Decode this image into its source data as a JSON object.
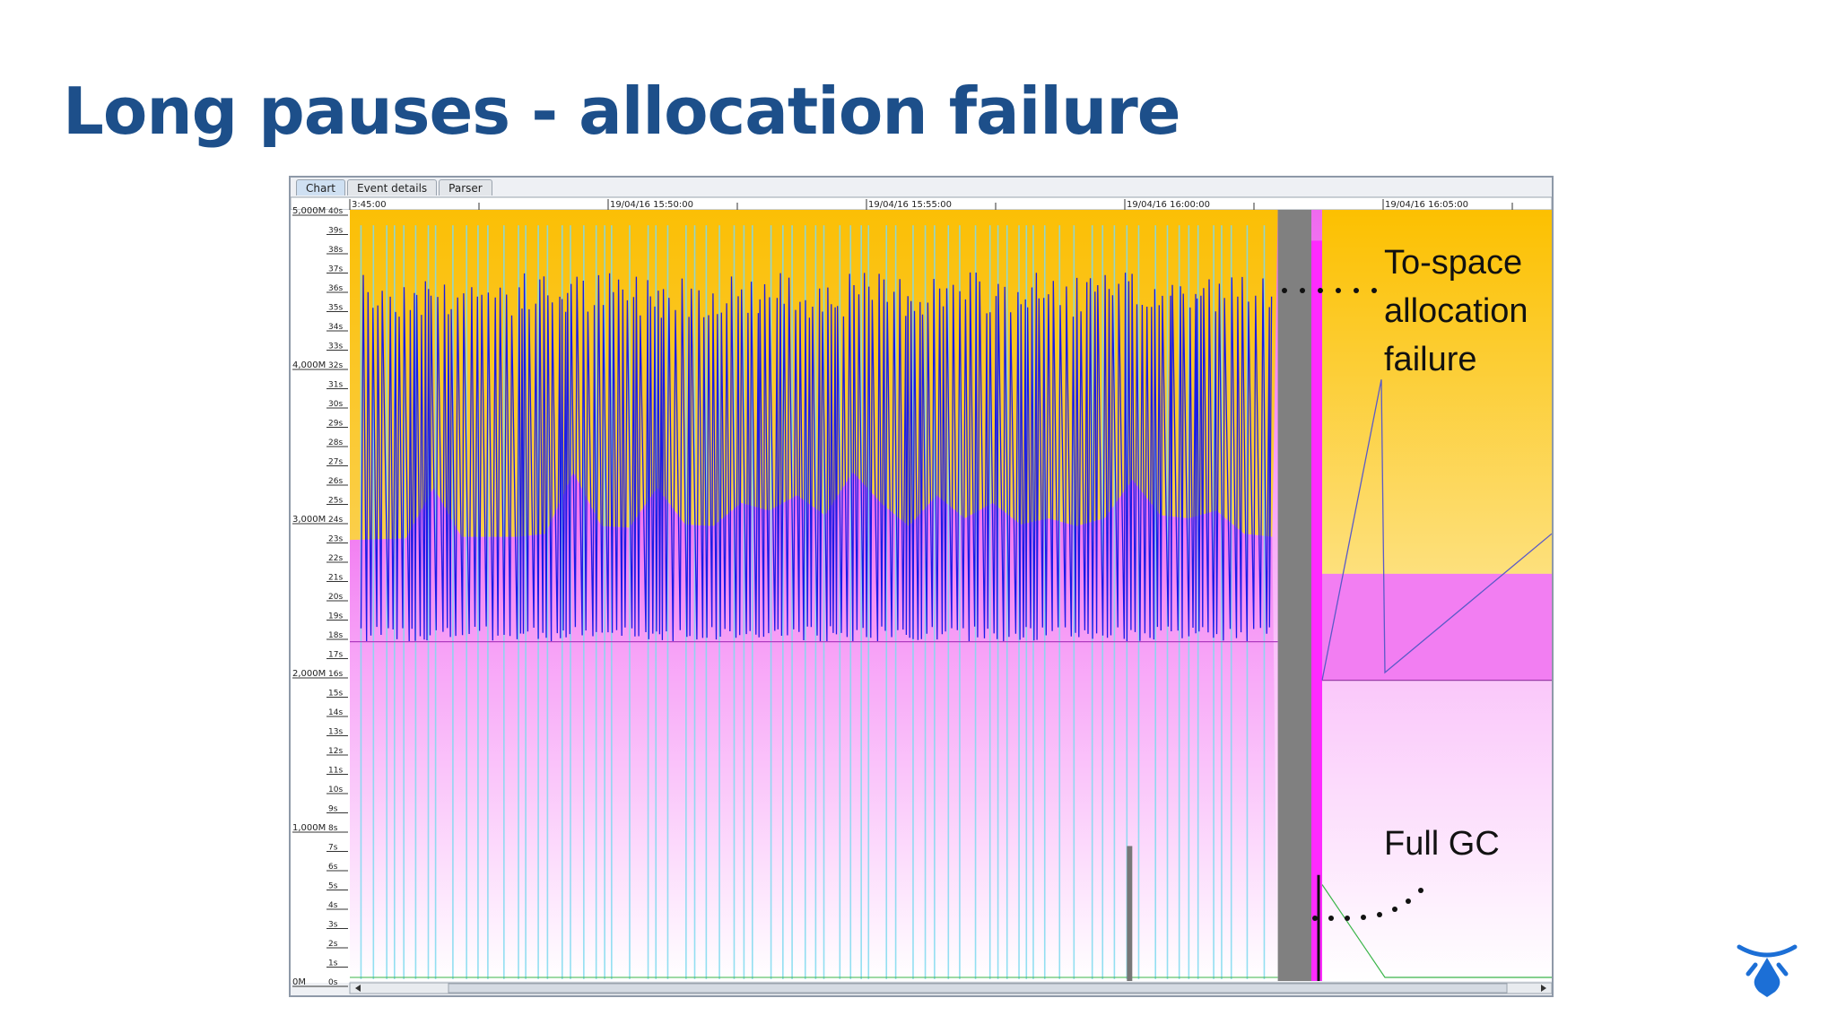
{
  "slide": {
    "title": "Long pauses - allocation failure"
  },
  "window": {
    "tabs": [
      {
        "label": "Chart",
        "active": true
      },
      {
        "label": "Event details",
        "active": false
      },
      {
        "label": "Parser",
        "active": false
      }
    ]
  },
  "annotations": {
    "to_space_line1": "To-space",
    "to_space_line2": "allocation",
    "to_space_line3": "failure",
    "full_gc": "Full GC"
  },
  "colors": {
    "title": "#1d4f8a",
    "old_gen_area": "#fbbf16",
    "young_gen_area": "#f27ef2",
    "pause_lines": "#1a1ae6",
    "cyan_lines": "#7fd9ee",
    "full_gc_band": "#808080",
    "logo": "#1c6fd6"
  },
  "chart_data": {
    "type": "area",
    "x_tick_labels": [
      "3:45:00",
      "19/04/16 15:50:00",
      "19/04/16 15:55:00",
      "19/04/16 16:00:00",
      "19/04/16 16:05:00"
    ],
    "y_left_labels": [
      "5,000M",
      "4,000M",
      "3,000M",
      "2,000M",
      "1,000M",
      "0M"
    ],
    "y_left_values": [
      5000,
      4000,
      3000,
      2000,
      1000,
      0
    ],
    "y_right_labels": [
      "40s",
      "39s",
      "38s",
      "37s",
      "36s",
      "35s",
      "34s",
      "33s",
      "32s",
      "31s",
      "30s",
      "29s",
      "28s",
      "27s",
      "26s",
      "25s",
      "24s",
      "23s",
      "22s",
      "21s",
      "20s",
      "19s",
      "18s",
      "17s",
      "16s",
      "15s",
      "14s",
      "13s",
      "12s",
      "11s",
      "10s",
      "9s",
      "8s",
      "7s",
      "6s",
      "5s",
      "4s",
      "3s",
      "2s",
      "1s",
      "0s"
    ],
    "ylim_heap": [
      0,
      5000
    ],
    "ylim_pause": [
      0,
      40
    ],
    "series": [
      {
        "name": "",
        "kind": "area",
        "x": [
          0,
          0.5,
          1,
          1.5,
          2,
          2.5,
          3,
          3.5,
          4,
          4.5,
          5,
          5.5,
          6,
          6.5,
          7,
          7.5,
          8,
          8.5,
          9,
          9.5,
          10,
          10.5,
          11,
          11.5,
          12,
          12.5,
          13,
          13.5,
          14,
          14.5,
          15,
          15.5,
          16,
          16.5,
          17,
          17.4,
          17.6,
          17.8,
          18.2,
          18.5,
          19,
          20,
          21,
          21.5
        ],
        "values": [
          5000,
          5000,
          5000,
          5000,
          5000,
          5000,
          5000,
          5000,
          5000,
          5000,
          5000,
          5000,
          5000,
          5000,
          5000,
          5000,
          5000,
          5000,
          5000,
          5000,
          5000,
          5000,
          5000,
          5000,
          5000,
          5000,
          5000,
          5000,
          5000,
          5000,
          5000,
          5000,
          5000,
          5000,
          5000,
          5000,
          5000,
          5000,
          5000,
          5000,
          5000,
          5000,
          5000,
          5000
        ]
      },
      {
        "name": "",
        "kind": "area",
        "x": [
          0,
          1,
          1.5,
          2,
          3,
          3.5,
          4,
          4.5,
          5,
          5.5,
          6,
          6.5,
          7,
          7.5,
          8,
          8.5,
          9,
          9.5,
          10,
          10.5,
          11,
          11.5,
          12,
          12.5,
          13,
          13.5,
          14,
          14.5,
          15,
          15.5,
          16,
          16.5,
          17,
          17.5,
          18,
          18.5,
          19,
          20,
          21,
          21.5
        ],
        "values": [
          2860,
          2870,
          3200,
          2880,
          2880,
          2900,
          3300,
          2950,
          2940,
          3200,
          2960,
          2950,
          3100,
          3050,
          3150,
          3020,
          3300,
          3100,
          2950,
          3150,
          3000,
          3100,
          2960,
          3000,
          2950,
          3000,
          3250,
          3020,
          3000,
          3050,
          2900,
          2880,
          2880,
          2890,
          2880,
          2880,
          2640,
          2640,
          2640,
          2640
        ]
      },
      {
        "name": "",
        "kind": "line",
        "x": [
          0,
          17.2,
          17.6,
          18.5,
          19,
          20,
          21,
          21.5
        ],
        "values": [
          2200,
          2200,
          2250,
          1950,
          1950,
          1950,
          1950,
          1950
        ]
      },
      {
        "name": "",
        "kind": "band",
        "x": [
          16.6,
          17.2
        ],
        "values": [
          40,
          40
        ]
      },
      {
        "name": "",
        "kind": "bar",
        "x": [
          13.9
        ],
        "values": [
          7
        ]
      }
    ]
  }
}
